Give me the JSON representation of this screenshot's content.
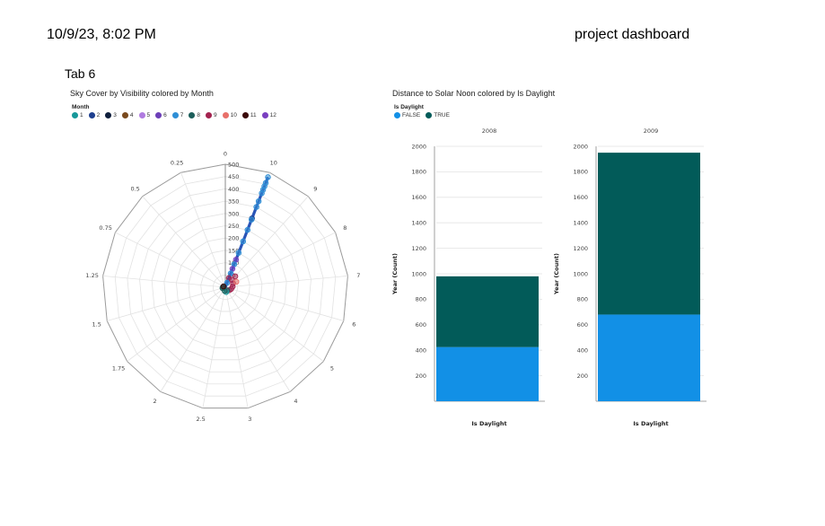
{
  "header": {
    "datetime": "10/9/23, 8:02 PM",
    "title": "project dashboard"
  },
  "tab": {
    "label": "Tab 6"
  },
  "chart_data": [
    {
      "type": "scatter",
      "subtype": "polar",
      "title": "Sky Cover by Visibility colored by Month",
      "legend_title": "Month",
      "legend_placement": "top-left",
      "angle_ticks": [
        "0",
        "10",
        "9",
        "8",
        "7",
        "6",
        "5",
        "4",
        "3",
        "2.5",
        "2",
        "1.75",
        "1.5",
        "1.25",
        "0.75",
        "0.5",
        "0.25"
      ],
      "radial_ticks": [
        50,
        100,
        150,
        200,
        250,
        300,
        350,
        400,
        450,
        500
      ],
      "radial_max": 500,
      "grid": true,
      "series": [
        {
          "name": "1",
          "color": "#17989a"
        },
        {
          "name": "2",
          "color": "#1e3f8f"
        },
        {
          "name": "3",
          "color": "#0f1f3d"
        },
        {
          "name": "4",
          "color": "#7a4a1e"
        },
        {
          "name": "5",
          "color": "#b07be0"
        },
        {
          "name": "6",
          "color": "#6d3fb8"
        },
        {
          "name": "7",
          "color": "#2f8fd6"
        },
        {
          "name": "8",
          "color": "#1c5e5a"
        },
        {
          "name": "9",
          "color": "#a3234f"
        },
        {
          "name": "10",
          "color": "#e8706a"
        },
        {
          "name": "11",
          "color": "#3a0a0a"
        },
        {
          "name": "12",
          "color": "#7a3fc0"
        }
      ],
      "points": [
        {
          "angle_index": 1,
          "r": 480,
          "s": 6
        },
        {
          "angle_index": 1,
          "r": 455,
          "s": 6
        },
        {
          "angle_index": 1,
          "r": 440,
          "s": 6
        },
        {
          "angle_index": 1,
          "r": 425,
          "s": 6
        },
        {
          "angle_index": 1,
          "r": 410,
          "s": 6
        },
        {
          "angle_index": 1,
          "r": 375,
          "s": 6
        },
        {
          "angle_index": 1,
          "r": 350,
          "s": 6
        },
        {
          "angle_index": 1,
          "r": 300,
          "s": 1
        },
        {
          "angle_index": 1,
          "r": 295,
          "s": 6
        },
        {
          "angle_index": 1,
          "r": 250,
          "s": 6
        },
        {
          "angle_index": 1,
          "r": 200,
          "s": 6
        },
        {
          "angle_index": 1,
          "r": 150,
          "s": 6
        },
        {
          "angle_index": 1,
          "r": 120,
          "s": 11
        },
        {
          "angle_index": 1,
          "r": 100,
          "s": 6
        },
        {
          "angle_index": 1,
          "r": 80,
          "s": 11
        },
        {
          "angle_index": 1,
          "r": 60,
          "s": 6
        },
        {
          "angle_index": 1,
          "r": 40,
          "s": 8
        },
        {
          "angle_index": 1,
          "r": 20,
          "s": 6
        },
        {
          "angle_index": 2,
          "r": 60,
          "s": 8
        },
        {
          "angle_index": 2,
          "r": 40,
          "s": 8
        },
        {
          "angle_index": 3,
          "r": 35,
          "s": 8
        },
        {
          "angle_index": 3,
          "r": 50,
          "s": 9
        },
        {
          "angle_index": 4,
          "r": 30,
          "s": 8
        },
        {
          "angle_index": 5,
          "r": 25,
          "s": 8
        },
        {
          "angle_index": 6,
          "r": 20,
          "s": 8
        },
        {
          "angle_index": 7,
          "r": 15,
          "s": 7
        },
        {
          "angle_index": 8,
          "r": 20,
          "s": 0
        },
        {
          "angle_index": 9,
          "r": 15,
          "s": 7
        },
        {
          "angle_index": 12,
          "r": 12,
          "s": 7
        },
        {
          "angle_index": 13,
          "r": 10,
          "s": 7
        },
        {
          "angle_index": 14,
          "r": 8,
          "s": 10
        }
      ]
    },
    {
      "type": "bar",
      "stacked": true,
      "title": "Distance to Solar Noon colored by Is Daylight",
      "legend_title": "Is Daylight",
      "legend_placement": "top-left",
      "series": [
        {
          "name": "FALSE",
          "color": "#1290e6"
        },
        {
          "name": "TRUE",
          "color": "#025b59"
        }
      ],
      "panels": [
        {
          "title": "2008",
          "xlabel": "Is Daylight",
          "ylabel": "Year (Count)",
          "ylim": [
            0,
            2000
          ],
          "yticks": [
            "200",
            "400",
            "600",
            "800",
            "1000",
            "1200",
            "1400",
            "1600",
            "1800",
            "2000"
          ],
          "values": {
            "FALSE": 425,
            "TRUE": 555
          }
        },
        {
          "title": "2009",
          "xlabel": "Is Daylight",
          "ylabel": "Year (Count)",
          "ylim": [
            0,
            2000
          ],
          "yticks": [
            "200",
            "400",
            "600",
            "800",
            "1000",
            "1200",
            "1400",
            "1600",
            "1800",
            "2000"
          ],
          "values": {
            "FALSE": 680,
            "TRUE": 1270
          }
        }
      ]
    }
  ]
}
